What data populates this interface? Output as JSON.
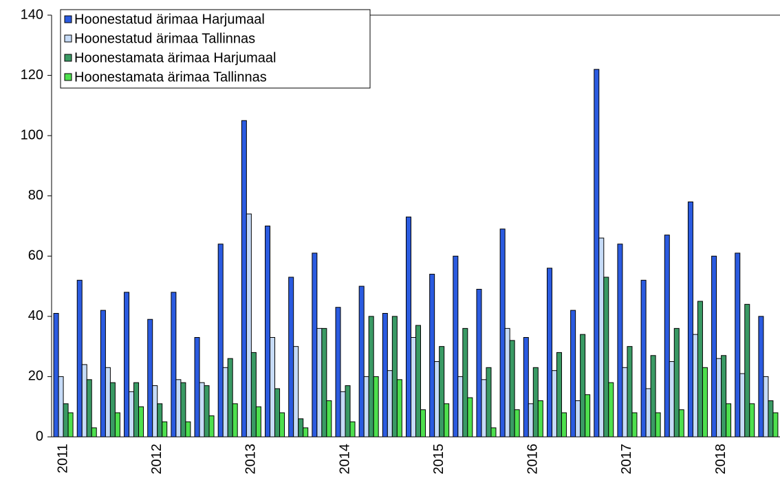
{
  "chart_data": {
    "type": "bar",
    "categories": [
      "2011",
      null,
      null,
      null,
      "2012",
      null,
      null,
      null,
      "2013",
      null,
      null,
      null,
      "2014",
      null,
      null,
      null,
      "2015",
      null,
      null,
      null,
      "2016",
      null,
      null,
      null,
      "2017",
      null,
      null,
      null,
      "2018",
      null,
      null
    ],
    "series": [
      {
        "name": "Hoonestatud ärimaa Harjumaal",
        "color": "#2b5be0",
        "values": [
          41,
          52,
          42,
          48,
          39,
          48,
          33,
          64,
          105,
          70,
          53,
          61,
          43,
          50,
          41,
          73,
          54,
          60,
          49,
          69,
          33,
          56,
          42,
          122,
          64,
          52,
          67,
          78,
          60,
          61,
          40
        ]
      },
      {
        "name": "Hoonestatud ärimaa Tallinnas",
        "color": "#c6dbf7",
        "values": [
          20,
          24,
          23,
          15,
          17,
          19,
          18,
          23,
          74,
          33,
          30,
          36,
          15,
          20,
          22,
          33,
          25,
          20,
          19,
          36,
          11,
          22,
          12,
          66,
          23,
          16,
          25,
          34,
          26,
          21,
          20
        ]
      },
      {
        "name": "Hoonestamata ärimaa Harjumaal",
        "color": "#3a9a64",
        "values": [
          11,
          19,
          18,
          18,
          11,
          18,
          17,
          26,
          28,
          16,
          6,
          36,
          17,
          40,
          40,
          37,
          30,
          36,
          23,
          32,
          23,
          28,
          34,
          53,
          30,
          27,
          36,
          45,
          27,
          44,
          12
        ]
      },
      {
        "name": "Hoonestamata ärimaa Tallinnas",
        "color": "#4ee04e",
        "values": [
          8,
          3,
          8,
          10,
          5,
          5,
          7,
          11,
          10,
          8,
          3,
          12,
          5,
          20,
          19,
          9,
          11,
          13,
          3,
          9,
          12,
          8,
          14,
          18,
          8,
          8,
          9,
          23,
          11,
          11,
          8
        ]
      }
    ],
    "ylim": [
      0,
      140
    ],
    "yticks": [
      0,
      20,
      40,
      60,
      80,
      100,
      120,
      140
    ],
    "legend": "top-left"
  }
}
